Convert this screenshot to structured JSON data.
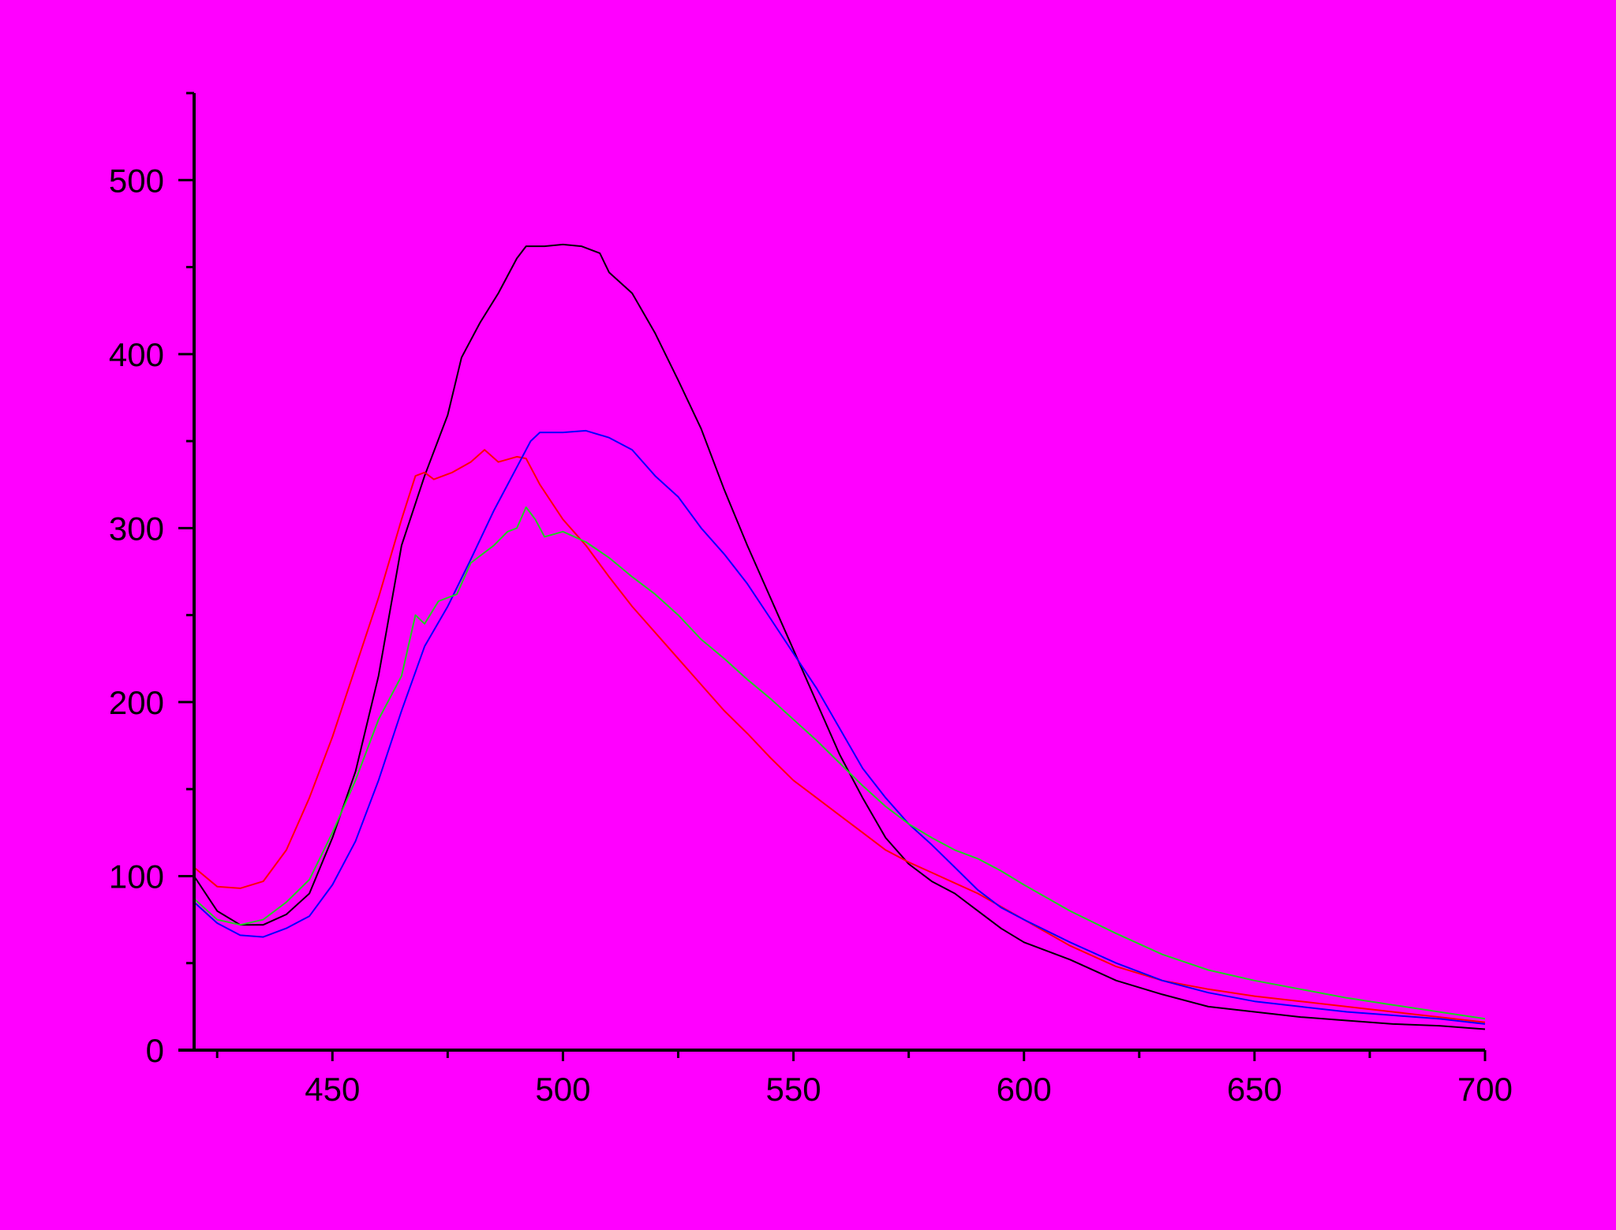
{
  "background": "#FF00FF",
  "chart_data": {
    "type": "line",
    "title": "",
    "xlabel": "",
    "ylabel": "",
    "xlim": [
      420,
      700
    ],
    "ylim": [
      0,
      550
    ],
    "x_ticks": [
      450,
      500,
      550,
      600,
      650,
      700
    ],
    "x_minor_ticks": [
      425,
      475,
      525,
      575,
      625,
      675
    ],
    "y_ticks": [
      0,
      100,
      200,
      300,
      400,
      500
    ],
    "y_minor_ticks": [
      50,
      150,
      250,
      350,
      450,
      550
    ],
    "legend": false,
    "grid": false,
    "series": [
      {
        "color": "#000000",
        "points": [
          [
            420,
            100
          ],
          [
            425,
            80
          ],
          [
            430,
            72
          ],
          [
            435,
            72
          ],
          [
            440,
            78
          ],
          [
            445,
            90
          ],
          [
            450,
            122
          ],
          [
            455,
            160
          ],
          [
            460,
            215
          ],
          [
            465,
            290
          ],
          [
            470,
            330
          ],
          [
            475,
            365
          ],
          [
            478,
            398
          ],
          [
            482,
            418
          ],
          [
            486,
            435
          ],
          [
            490,
            455
          ],
          [
            492,
            462
          ],
          [
            496,
            462
          ],
          [
            500,
            463
          ],
          [
            504,
            462
          ],
          [
            508,
            458
          ],
          [
            510,
            447
          ],
          [
            515,
            435
          ],
          [
            520,
            412
          ],
          [
            525,
            385
          ],
          [
            530,
            357
          ],
          [
            535,
            322
          ],
          [
            540,
            290
          ],
          [
            545,
            260
          ],
          [
            550,
            230
          ],
          [
            555,
            200
          ],
          [
            560,
            170
          ],
          [
            565,
            145
          ],
          [
            570,
            122
          ],
          [
            575,
            107
          ],
          [
            580,
            97
          ],
          [
            585,
            90
          ],
          [
            590,
            80
          ],
          [
            595,
            70
          ],
          [
            600,
            62
          ],
          [
            610,
            52
          ],
          [
            620,
            40
          ],
          [
            630,
            32
          ],
          [
            640,
            25
          ],
          [
            650,
            22
          ],
          [
            660,
            19
          ],
          [
            670,
            17
          ],
          [
            680,
            15
          ],
          [
            690,
            14
          ],
          [
            700,
            12
          ]
        ]
      },
      {
        "color": "#FF0000",
        "points": [
          [
            420,
            105
          ],
          [
            425,
            94
          ],
          [
            430,
            93
          ],
          [
            435,
            97
          ],
          [
            440,
            115
          ],
          [
            445,
            145
          ],
          [
            450,
            180
          ],
          [
            455,
            220
          ],
          [
            460,
            260
          ],
          [
            465,
            305
          ],
          [
            468,
            330
          ],
          [
            470,
            332
          ],
          [
            472,
            328
          ],
          [
            476,
            332
          ],
          [
            480,
            338
          ],
          [
            483,
            345
          ],
          [
            486,
            338
          ],
          [
            490,
            341
          ],
          [
            492,
            340
          ],
          [
            495,
            325
          ],
          [
            500,
            305
          ],
          [
            505,
            290
          ],
          [
            510,
            272
          ],
          [
            515,
            255
          ],
          [
            520,
            240
          ],
          [
            525,
            225
          ],
          [
            530,
            210
          ],
          [
            535,
            195
          ],
          [
            540,
            182
          ],
          [
            545,
            168
          ],
          [
            550,
            155
          ],
          [
            555,
            145
          ],
          [
            560,
            135
          ],
          [
            565,
            125
          ],
          [
            570,
            115
          ],
          [
            575,
            108
          ],
          [
            580,
            102
          ],
          [
            585,
            96
          ],
          [
            590,
            90
          ],
          [
            600,
            75
          ],
          [
            610,
            60
          ],
          [
            620,
            48
          ],
          [
            630,
            40
          ],
          [
            640,
            35
          ],
          [
            650,
            31
          ],
          [
            660,
            28
          ],
          [
            670,
            25
          ],
          [
            680,
            22
          ],
          [
            690,
            19
          ],
          [
            700,
            16
          ]
        ]
      },
      {
        "color": "#0000FF",
        "points": [
          [
            420,
            85
          ],
          [
            425,
            73
          ],
          [
            430,
            66
          ],
          [
            435,
            65
          ],
          [
            440,
            70
          ],
          [
            445,
            77
          ],
          [
            450,
            95
          ],
          [
            455,
            120
          ],
          [
            460,
            155
          ],
          [
            465,
            195
          ],
          [
            470,
            232
          ],
          [
            475,
            255
          ],
          [
            480,
            282
          ],
          [
            485,
            310
          ],
          [
            490,
            335
          ],
          [
            493,
            350
          ],
          [
            495,
            355
          ],
          [
            500,
            355
          ],
          [
            505,
            356
          ],
          [
            510,
            352
          ],
          [
            515,
            345
          ],
          [
            520,
            330
          ],
          [
            525,
            318
          ],
          [
            530,
            300
          ],
          [
            535,
            285
          ],
          [
            540,
            268
          ],
          [
            545,
            248
          ],
          [
            550,
            228
          ],
          [
            555,
            208
          ],
          [
            560,
            185
          ],
          [
            565,
            162
          ],
          [
            570,
            145
          ],
          [
            575,
            130
          ],
          [
            580,
            118
          ],
          [
            585,
            105
          ],
          [
            590,
            92
          ],
          [
            595,
            82
          ],
          [
            600,
            75
          ],
          [
            610,
            62
          ],
          [
            620,
            50
          ],
          [
            630,
            40
          ],
          [
            640,
            33
          ],
          [
            650,
            28
          ],
          [
            660,
            25
          ],
          [
            670,
            22
          ],
          [
            680,
            20
          ],
          [
            690,
            18
          ],
          [
            700,
            15
          ]
        ]
      },
      {
        "color": "#22CC22",
        "points": [
          [
            420,
            87
          ],
          [
            425,
            75
          ],
          [
            430,
            72
          ],
          [
            435,
            75
          ],
          [
            440,
            85
          ],
          [
            445,
            98
          ],
          [
            450,
            125
          ],
          [
            455,
            155
          ],
          [
            460,
            190
          ],
          [
            465,
            215
          ],
          [
            468,
            250
          ],
          [
            470,
            245
          ],
          [
            473,
            258
          ],
          [
            477,
            262
          ],
          [
            480,
            280
          ],
          [
            485,
            290
          ],
          [
            488,
            298
          ],
          [
            490,
            300
          ],
          [
            492,
            312
          ],
          [
            494,
            305
          ],
          [
            496,
            295
          ],
          [
            500,
            298
          ],
          [
            505,
            292
          ],
          [
            510,
            283
          ],
          [
            515,
            272
          ],
          [
            520,
            262
          ],
          [
            525,
            250
          ],
          [
            530,
            236
          ],
          [
            535,
            225
          ],
          [
            540,
            213
          ],
          [
            545,
            202
          ],
          [
            550,
            190
          ],
          [
            555,
            178
          ],
          [
            560,
            165
          ],
          [
            565,
            152
          ],
          [
            570,
            140
          ],
          [
            575,
            130
          ],
          [
            580,
            122
          ],
          [
            585,
            115
          ],
          [
            590,
            110
          ],
          [
            595,
            103
          ],
          [
            600,
            95
          ],
          [
            610,
            80
          ],
          [
            620,
            67
          ],
          [
            630,
            55
          ],
          [
            640,
            46
          ],
          [
            650,
            40
          ],
          [
            660,
            35
          ],
          [
            670,
            30
          ],
          [
            680,
            26
          ],
          [
            690,
            22
          ],
          [
            700,
            18
          ]
        ]
      }
    ]
  }
}
